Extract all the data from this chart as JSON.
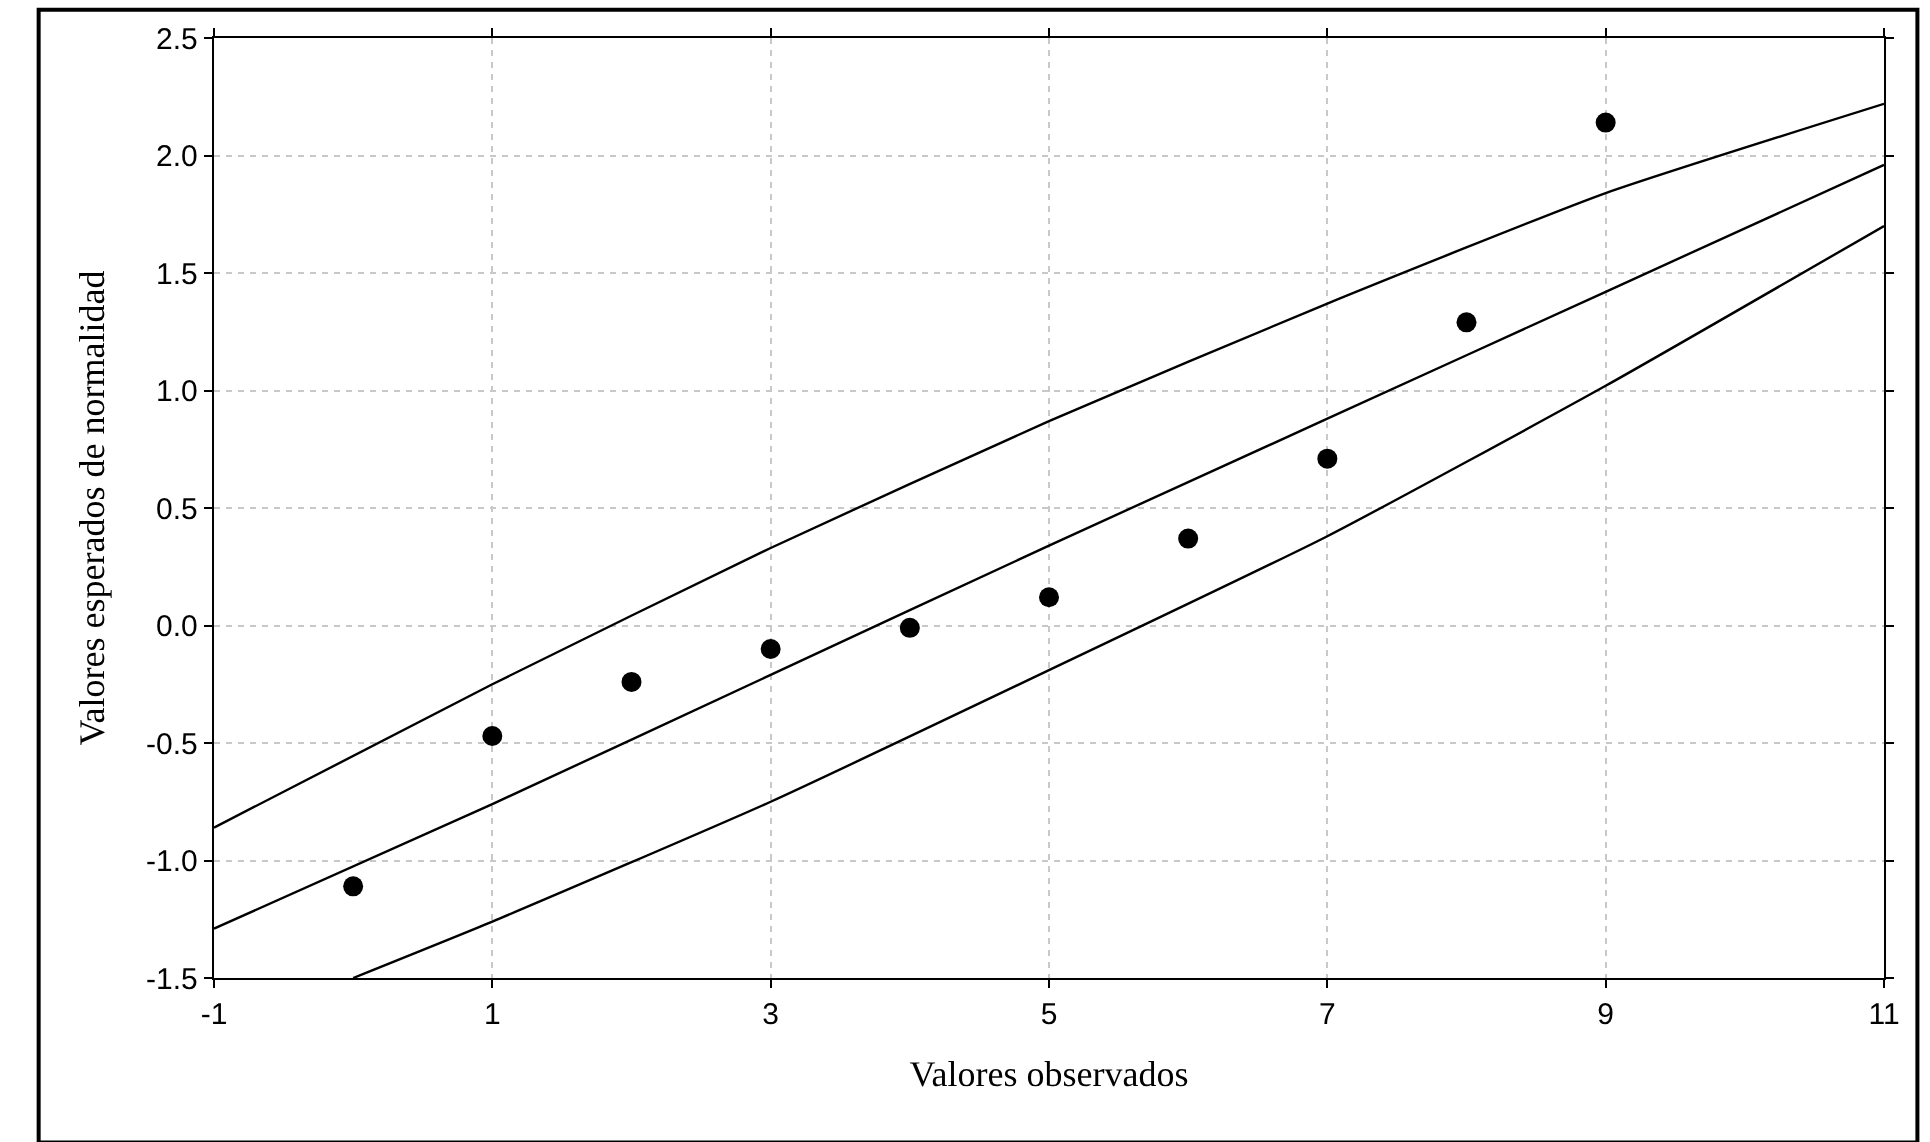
{
  "chart_data": {
    "type": "scatter",
    "xlabel": "Valores observados",
    "ylabel": "Valores esperados de normalidad",
    "x": [
      0,
      1,
      2,
      3,
      4,
      5,
      6,
      7,
      8,
      9
    ],
    "series": [
      {
        "color": "#000000",
        "marker": "circle",
        "values": [
          -1.11,
          -0.47,
          -0.24,
          -0.1,
          -0.01,
          0.12,
          0.37,
          0.71,
          1.29,
          2.14
        ]
      },
      {
        "type": "line",
        "color": "#000000",
        "marker": "none",
        "x": [
          -1,
          1,
          3,
          5,
          7,
          9,
          11
        ],
        "values": [
          -0.86,
          -0.25,
          0.33,
          0.87,
          1.37,
          1.84,
          2.22
        ]
      },
      {
        "type": "line",
        "color": "#000000",
        "marker": "none",
        "x": [
          -1,
          1,
          3,
          5,
          7,
          9,
          11
        ],
        "values": [
          -1.29,
          -0.76,
          -0.21,
          0.34,
          0.88,
          1.42,
          1.96
        ]
      },
      {
        "type": "line",
        "color": "#000000",
        "marker": "none",
        "x": [
          0,
          1,
          3,
          5,
          7,
          9,
          11
        ],
        "values": [
          -1.5,
          -1.26,
          -0.75,
          -0.19,
          0.38,
          1.02,
          1.7
        ]
      }
    ],
    "xlim": [
      -1,
      11
    ],
    "xticks": [
      -1,
      1,
      3,
      5,
      7,
      9,
      11
    ],
    "ylim": [
      -1.5,
      2.5
    ],
    "yticks": [
      {
        "value": -1.5,
        "label": "-1.5"
      },
      {
        "value": -1.0,
        "label": "-1.0"
      },
      {
        "value": -0.5,
        "label": "-0.5"
      },
      {
        "value": 0,
        "label": "0.0"
      },
      {
        "value": 0.5,
        "label": "0.5"
      },
      {
        "value": 1.0,
        "label": "1.0"
      },
      {
        "value": 1.5,
        "label": "1.5"
      },
      {
        "value": 2.0,
        "label": "2.0"
      },
      {
        "value": 2.5,
        "label": "2.5"
      }
    ],
    "grid": true
  }
}
